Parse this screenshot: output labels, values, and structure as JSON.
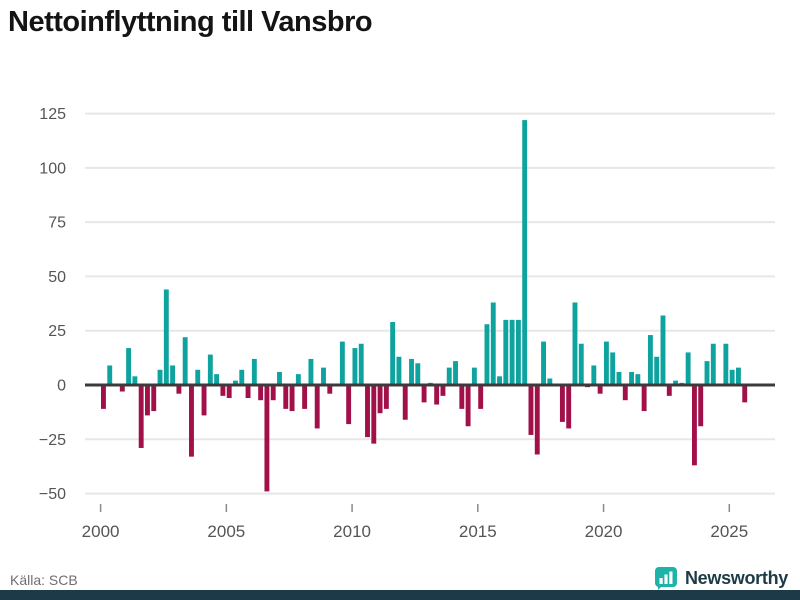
{
  "title": "Nettoinflyttning till Vansbro",
  "source": "Källa: SCB",
  "brand": {
    "name": "Newsworthy",
    "icon": "bar-chart-icon"
  },
  "chart_data": {
    "type": "bar",
    "title": "Nettoinflyttning till Vansbro",
    "start": "2000-Q1",
    "frequency": "quarterly",
    "xlabel": "",
    "ylabel": "",
    "x_ticks": [
      2000,
      2005,
      2010,
      2015,
      2020,
      2025
    ],
    "y_ticks": [
      125,
      100,
      75,
      50,
      25,
      0,
      -25,
      -50
    ],
    "ylim": [
      -50,
      125
    ],
    "grid": true,
    "legend": "none",
    "colors": {
      "positive": "#0FA3A0",
      "negative": "#A11048",
      "zero_line": "#3b3b3b",
      "grid": "#e7e7e7",
      "axis_text": "#555555"
    },
    "values": [
      -11,
      9,
      0,
      -3,
      17,
      4,
      -29,
      -14,
      -12,
      7,
      44,
      9,
      -4,
      22,
      -33,
      7,
      -14,
      14,
      5,
      -5,
      -6,
      2,
      7,
      -6,
      12,
      -7,
      -49,
      -7,
      6,
      -11,
      -12,
      5,
      -11,
      12,
      -20,
      8,
      -4,
      0,
      20,
      -18,
      17,
      19,
      -24,
      -27,
      -13,
      -11,
      29,
      13,
      -16,
      12,
      10,
      -8,
      1,
      -9,
      -5,
      8,
      11,
      -11,
      -19,
      8,
      -11,
      28,
      38,
      4,
      30,
      30,
      30,
      122,
      -23,
      -32,
      20,
      3,
      0,
      -17,
      -20,
      38,
      19,
      -1,
      9,
      -4,
      20,
      15,
      6,
      -7,
      6,
      5,
      -12,
      23,
      13,
      32,
      -5,
      2,
      1,
      15,
      -37,
      -19,
      11,
      19,
      0,
      19,
      7,
      8,
      -8
    ]
  }
}
